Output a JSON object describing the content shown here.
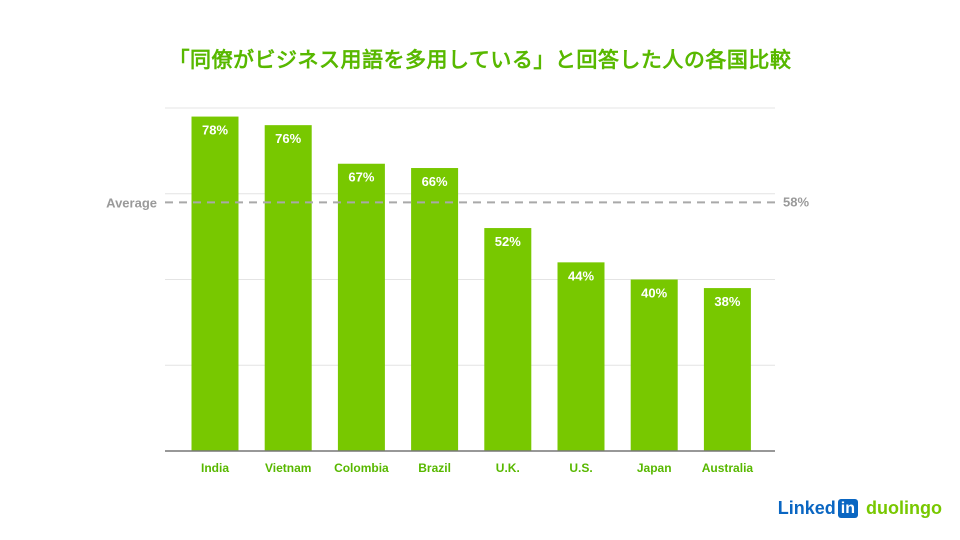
{
  "chart_data": {
    "type": "bar",
    "title": "「同僚がビジネス用語を多用している」と回答した人の各国比較",
    "categories": [
      "India",
      "Vietnam",
      "Colombia",
      "Brazil",
      "U.K.",
      "U.S.",
      "Japan",
      "Australia"
    ],
    "values": [
      78,
      76,
      67,
      66,
      52,
      44,
      40,
      38
    ],
    "value_labels": [
      "78%",
      "76%",
      "67%",
      "66%",
      "52%",
      "44%",
      "40%",
      "38%"
    ],
    "ylim": [
      0,
      80
    ],
    "grid": true,
    "reference_line": {
      "label": "Average",
      "value": 58,
      "value_label": "58%"
    },
    "bar_color": "#78c800",
    "label_color": "#58b800"
  },
  "logos": {
    "linkedin_text": "Linked",
    "linkedin_box": "in",
    "duolingo": "duolingo"
  }
}
